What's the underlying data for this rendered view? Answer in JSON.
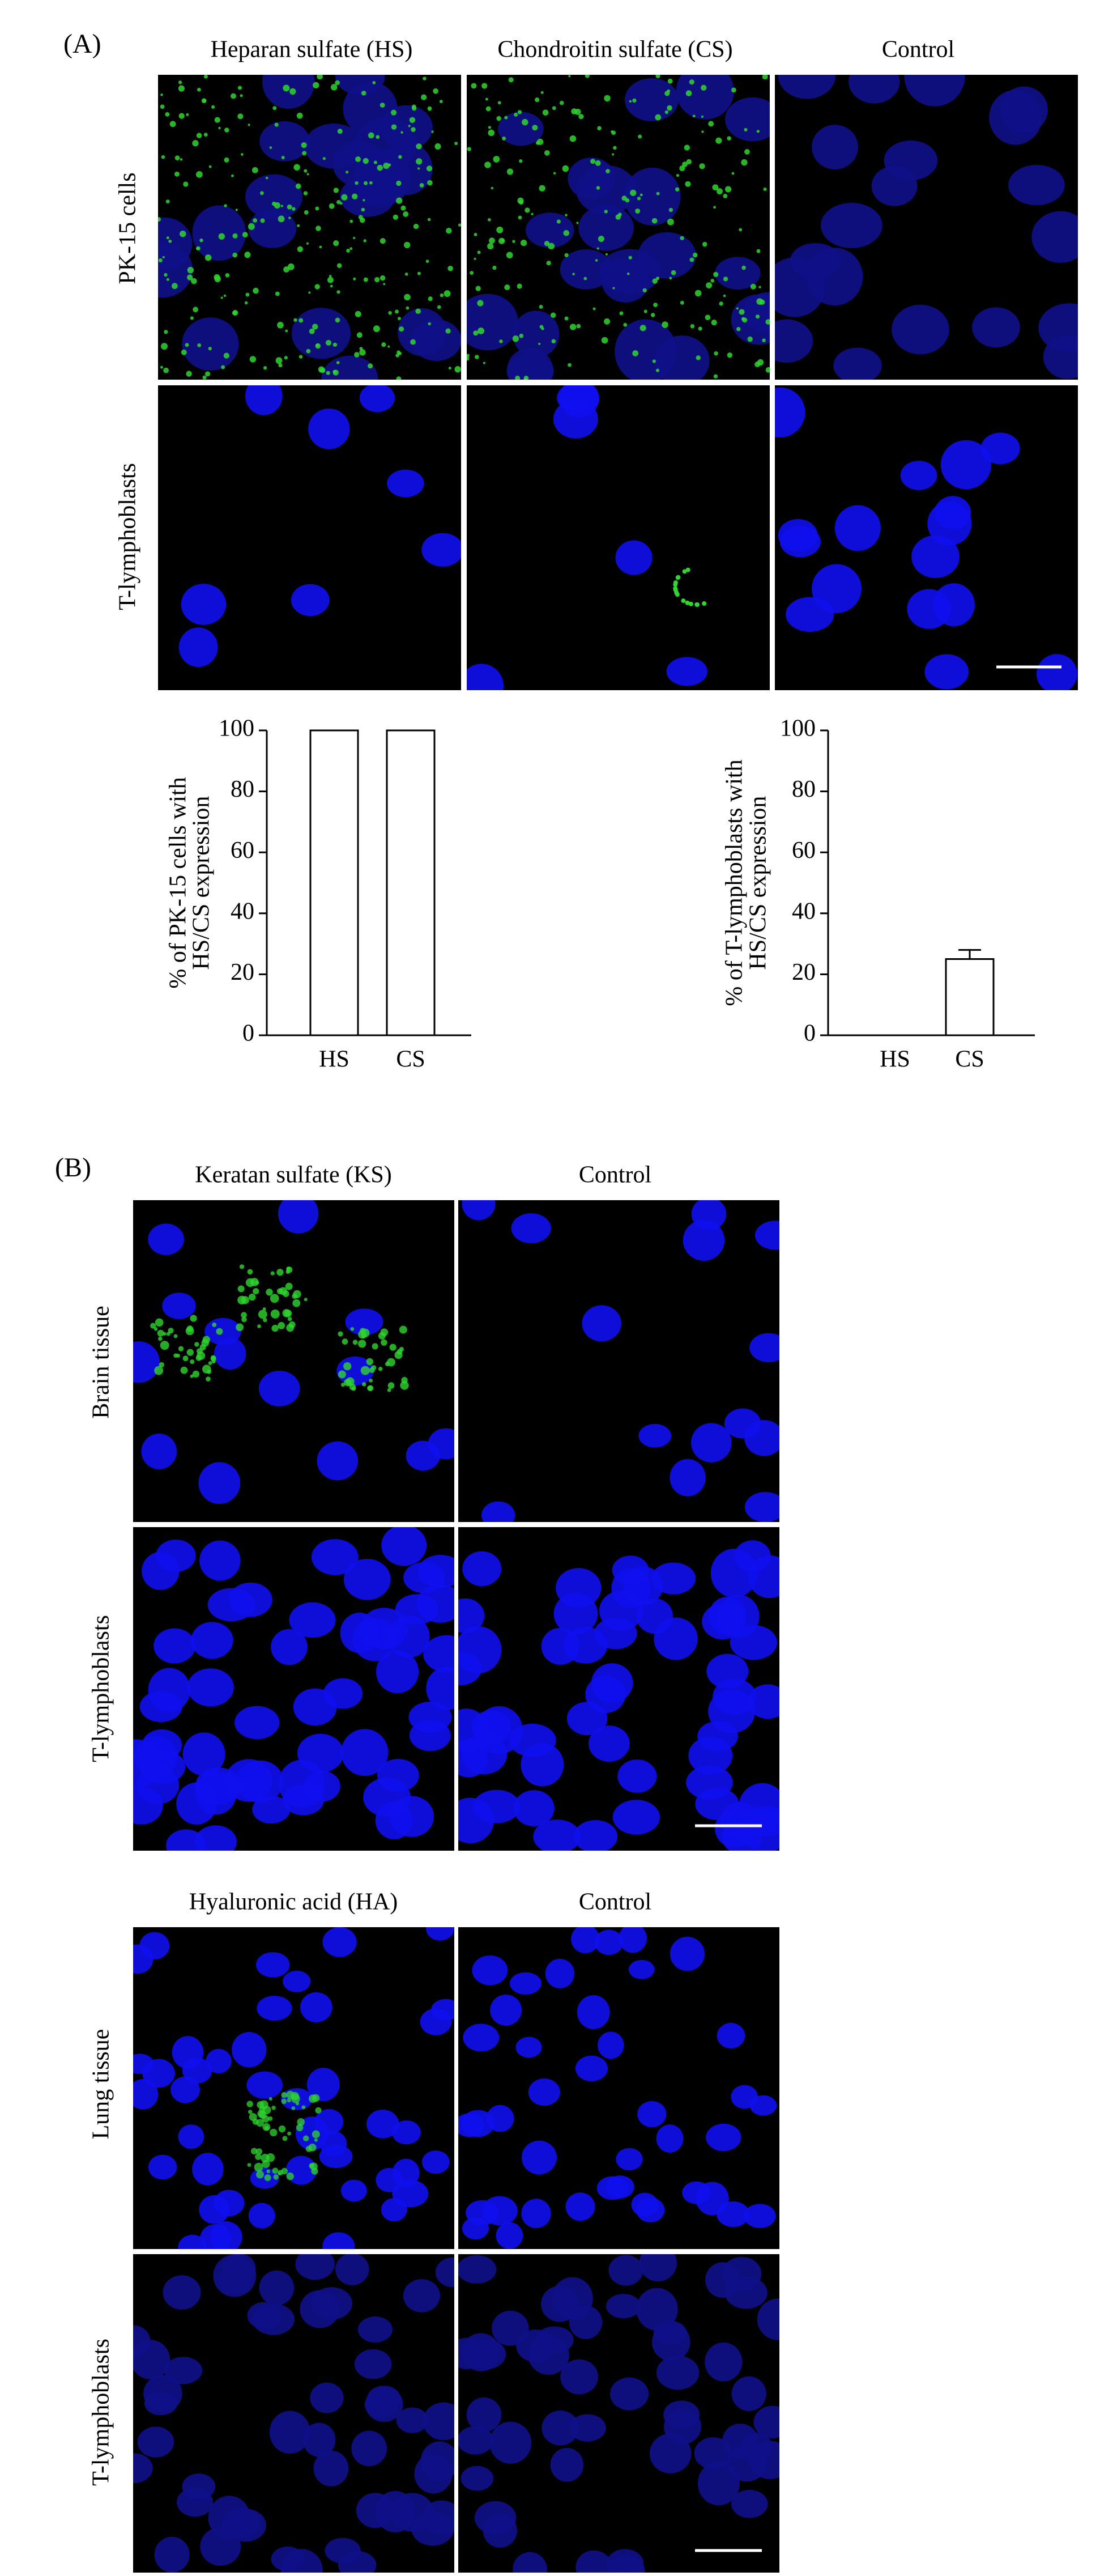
{
  "panel_a": {
    "label": "(A)",
    "columns": [
      "Heparan sulfate (HS)",
      "Chondroitin sulfate (CS)",
      "Control"
    ],
    "rows": [
      "PK-15 cells",
      "T-lymphoblasts"
    ]
  },
  "chart_data": [
    {
      "type": "bar",
      "y_label": [
        "% of PK-15 cells with",
        "HS/CS expression"
      ],
      "categories": [
        "HS",
        "CS"
      ],
      "values": [
        100,
        100
      ],
      "color": "#ffffff",
      "ylim": [
        0,
        100
      ],
      "yticks": [
        0,
        20,
        40,
        60,
        80,
        100
      ]
    },
    {
      "type": "bar",
      "y_label": [
        "% of T-lymphoblasts with",
        "HS/CS expression"
      ],
      "categories": [
        "HS",
        "CS"
      ],
      "values": [
        0,
        25
      ],
      "errors": [
        0,
        3
      ],
      "color": "#ffffff",
      "ylim": [
        0,
        100
      ],
      "yticks": [
        0,
        20,
        40,
        60,
        80,
        100
      ]
    }
  ],
  "panel_b": {
    "label": "(B)",
    "blocks": [
      {
        "columns": [
          "Keratan sulfate (KS)",
          "Control"
        ],
        "rows": [
          "Brain tissue",
          "T-lymphoblasts"
        ]
      },
      {
        "columns": [
          "Hyaluronic acid (HA)",
          "Control"
        ],
        "rows": [
          "Lung tissue",
          "T-lymphoblasts"
        ]
      }
    ]
  }
}
